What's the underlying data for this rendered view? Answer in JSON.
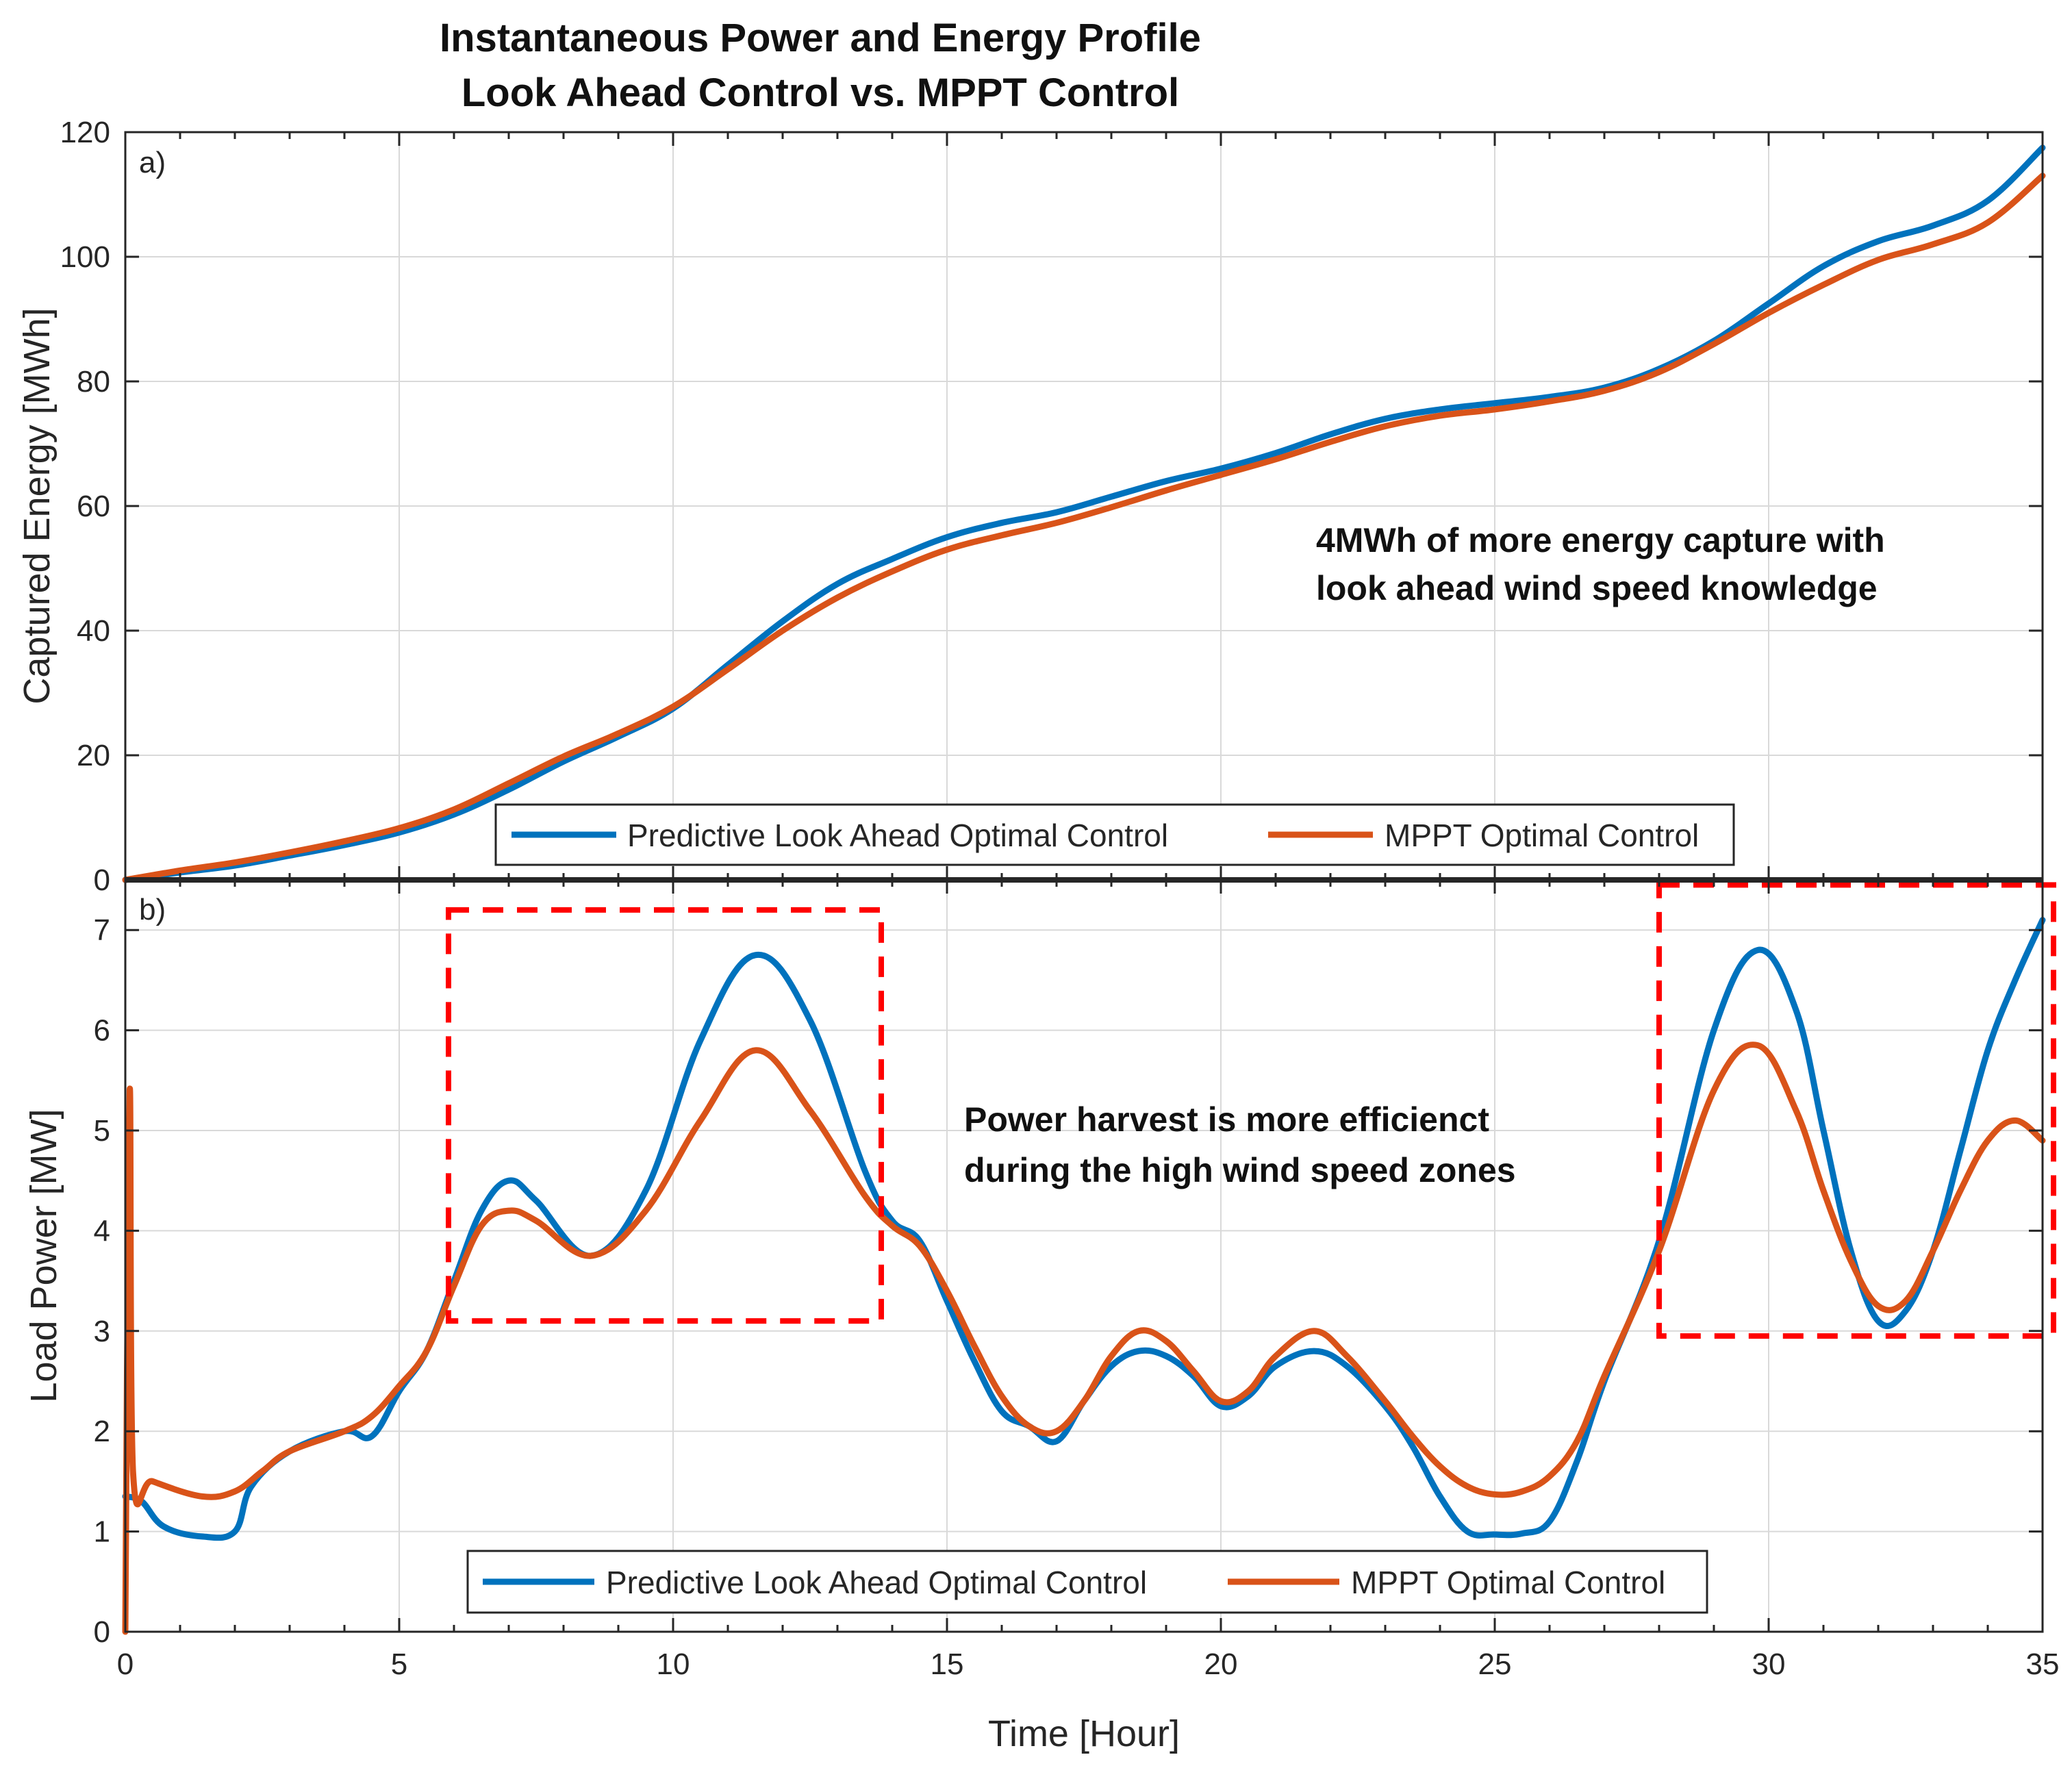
{
  "colors": {
    "predictive": "#0072BD",
    "mppt": "#D95319",
    "highlight": "#FF0000"
  },
  "chart_data": [
    {
      "type": "line",
      "panel_label": "a)",
      "title": [
        "Instantaneous Power and Energy Profile",
        "Look Ahead Control vs. MPPT Control"
      ],
      "ylabel": "Captured Energy [MWh]",
      "xlabel": "",
      "xlim": [
        0,
        35
      ],
      "ylim": [
        0,
        120
      ],
      "yticks": [
        0,
        20,
        40,
        60,
        80,
        100,
        120
      ],
      "xticks": [
        0,
        5,
        10,
        15,
        20,
        25,
        30,
        35
      ],
      "grid": true,
      "legend": {
        "placement": "bottom-center",
        "orientation": "horizontal"
      },
      "annotation": [
        "4MWh of more energy capture with",
        "look ahead wind speed knowledge"
      ],
      "series": [
        {
          "name": "Predictive Look Ahead Optimal Control",
          "color_key": "predictive",
          "x": [
            0,
            1,
            2,
            3,
            4,
            5,
            6,
            7,
            8,
            9,
            10,
            11,
            12,
            13,
            14,
            15,
            16,
            17,
            18,
            19,
            20,
            21,
            22,
            23,
            24,
            25,
            26,
            27,
            28,
            29,
            30,
            31,
            32,
            33,
            34,
            35
          ],
          "y": [
            0,
            1.2,
            2.3,
            3.9,
            5.6,
            7.6,
            10.5,
            14.5,
            19.0,
            23.0,
            27.5,
            34.5,
            41.5,
            47.5,
            51.5,
            55.0,
            57.3,
            59.0,
            61.5,
            64.0,
            66.0,
            68.5,
            71.5,
            74.0,
            75.5,
            76.5,
            77.5,
            79.0,
            82.0,
            86.5,
            92.5,
            98.5,
            102.5,
            105.0,
            109.0,
            117.5
          ]
        },
        {
          "name": "MPPT Optimal Control",
          "color_key": "mppt",
          "x": [
            0,
            1,
            2,
            3,
            4,
            5,
            6,
            7,
            8,
            9,
            10,
            11,
            12,
            13,
            14,
            15,
            16,
            17,
            18,
            19,
            20,
            21,
            22,
            23,
            24,
            25,
            26,
            27,
            28,
            29,
            30,
            31,
            32,
            33,
            34,
            35
          ],
          "y": [
            0,
            1.5,
            2.8,
            4.4,
            6.2,
            8.3,
            11.3,
            15.5,
            19.8,
            23.5,
            27.8,
            33.8,
            40.0,
            45.3,
            49.5,
            53.0,
            55.3,
            57.3,
            59.8,
            62.5,
            65.0,
            67.5,
            70.3,
            72.8,
            74.5,
            75.5,
            76.8,
            78.5,
            81.5,
            86.0,
            91.0,
            95.5,
            99.5,
            102.0,
            105.5,
            113.0
          ]
        }
      ]
    },
    {
      "type": "line",
      "panel_label": "b)",
      "ylabel": "Load Power [MW]",
      "xlabel": "Time [Hour]",
      "xlim": [
        0,
        35
      ],
      "ylim": [
        0,
        7.5
      ],
      "yticks": [
        0,
        1,
        2,
        3,
        4,
        5,
        6,
        7
      ],
      "xticks": [
        0,
        5,
        10,
        15,
        20,
        25,
        30,
        35
      ],
      "grid": true,
      "legend": {
        "placement": "bottom-center",
        "orientation": "horizontal"
      },
      "annotation": [
        "Power harvest is more efficienct",
        "during the high wind speed zones"
      ],
      "highlight_boxes": [
        {
          "x": [
            5.9,
            13.8
          ],
          "y": [
            3.1,
            7.2
          ]
        },
        {
          "x": [
            28.0,
            35.2
          ],
          "y": [
            2.95,
            7.45
          ]
        }
      ],
      "series": [
        {
          "name": "Predictive Look Ahead Optimal Control",
          "color_key": "predictive",
          "x": [
            0,
            0.3,
            0.7,
            1.4,
            2.0,
            2.3,
            3.0,
            4.0,
            4.5,
            5.0,
            5.5,
            6.0,
            6.5,
            7.0,
            7.5,
            8.5,
            9.5,
            10.5,
            11.5,
            12.5,
            13.5,
            14.0,
            14.5,
            15.0,
            15.5,
            16.0,
            16.5,
            17.0,
            17.5,
            18.0,
            18.5,
            19.0,
            19.5,
            20.0,
            20.5,
            21.0,
            21.7,
            22.3,
            23.0,
            23.5,
            24.0,
            24.5,
            25.0,
            25.5,
            26.0,
            26.5,
            27.0,
            28.0,
            29.0,
            29.8,
            30.5,
            31.0,
            31.5,
            32.0,
            32.5,
            33.0,
            33.5,
            34.0,
            34.5,
            35.0
          ],
          "y": [
            1.35,
            1.3,
            1.05,
            0.95,
            1.0,
            1.45,
            1.8,
            2.0,
            1.95,
            2.4,
            2.8,
            3.5,
            4.2,
            4.5,
            4.3,
            3.75,
            4.4,
            5.9,
            6.75,
            6.1,
            4.6,
            4.1,
            3.9,
            3.3,
            2.7,
            2.2,
            2.05,
            1.9,
            2.3,
            2.65,
            2.8,
            2.75,
            2.55,
            2.25,
            2.35,
            2.65,
            2.8,
            2.65,
            2.25,
            1.85,
            1.35,
            1.0,
            0.97,
            0.98,
            1.1,
            1.7,
            2.5,
            3.9,
            6.0,
            6.8,
            6.2,
            5.0,
            3.8,
            3.1,
            3.2,
            3.8,
            4.8,
            5.8,
            6.5,
            7.1
          ]
        },
        {
          "name": "MPPT Optimal Control",
          "color_key": "mppt",
          "x": [
            0,
            0.08,
            0.14,
            0.5,
            1.4,
            2.0,
            2.5,
            3.0,
            4.0,
            4.5,
            5.0,
            5.5,
            6.0,
            6.5,
            7.0,
            7.5,
            8.5,
            9.5,
            10.5,
            11.5,
            12.5,
            13.5,
            14.0,
            14.5,
            15.0,
            15.5,
            16.0,
            16.5,
            17.0,
            17.5,
            18.0,
            18.5,
            19.0,
            19.5,
            20.0,
            20.5,
            21.0,
            21.7,
            22.3,
            23.0,
            23.5,
            24.0,
            24.5,
            25.0,
            25.5,
            26.0,
            26.5,
            27.0,
            28.0,
            29.0,
            29.8,
            30.5,
            31.0,
            31.5,
            32.0,
            32.5,
            33.0,
            33.5,
            34.0,
            34.5,
            35.0
          ],
          "y": [
            0,
            5.4,
            1.6,
            1.5,
            1.35,
            1.4,
            1.6,
            1.8,
            2.0,
            2.15,
            2.45,
            2.8,
            3.45,
            4.05,
            4.2,
            4.1,
            3.75,
            4.2,
            5.1,
            5.8,
            5.2,
            4.35,
            4.05,
            3.85,
            3.4,
            2.85,
            2.35,
            2.05,
            2.0,
            2.3,
            2.75,
            3.0,
            2.9,
            2.6,
            2.3,
            2.4,
            2.75,
            3.0,
            2.75,
            2.3,
            1.95,
            1.65,
            1.45,
            1.37,
            1.4,
            1.55,
            1.9,
            2.55,
            3.8,
            5.4,
            5.85,
            5.2,
            4.4,
            3.7,
            3.25,
            3.3,
            3.8,
            4.4,
            4.9,
            5.1,
            4.9
          ]
        }
      ]
    }
  ]
}
